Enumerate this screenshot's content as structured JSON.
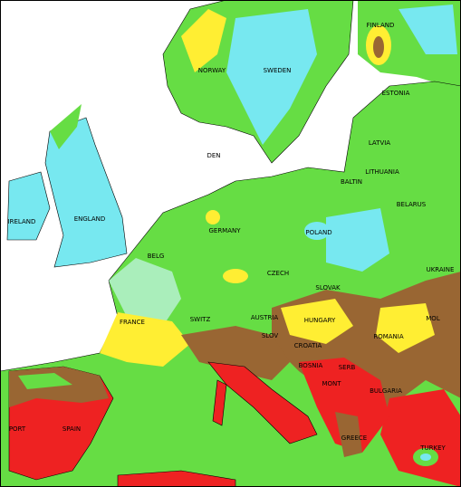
{
  "map": {
    "labels": [
      "FINLAND",
      "NORWAY",
      "SWEDEN",
      "ESTONIA",
      "LATVIA",
      "LITHUANIA",
      "DEN",
      "BALTIN",
      "IRELAND",
      "ENGLAND",
      "GERMANY",
      "POLAND",
      "BELARUS",
      "UKRAINE",
      "BELG",
      "FRANCE",
      "SWITZ",
      "AUSTRIA",
      "CZECH",
      "SLOVAK",
      "HUNGARY",
      "ROMANIA",
      "MOL",
      "SLOV",
      "CROATIA",
      "BOSNIA",
      "SERB",
      "MONT",
      "BULGARIA",
      "GREECE",
      "TURKEY",
      "SPAIN",
      "PORT"
    ]
  }
}
